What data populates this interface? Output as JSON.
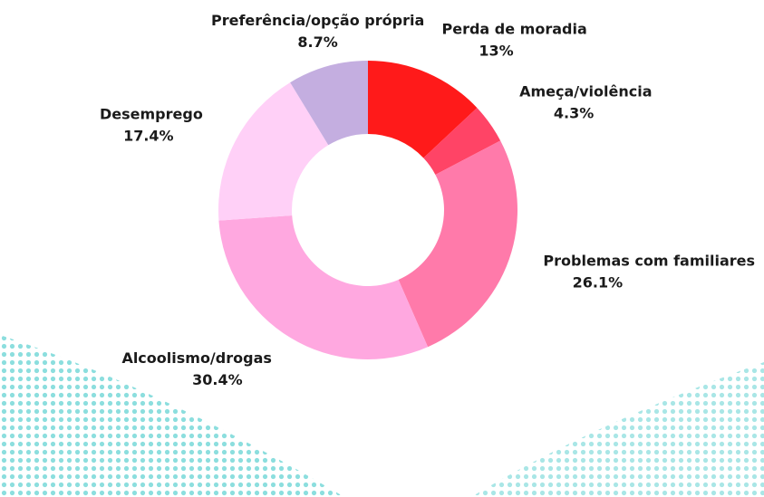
{
  "chart_data": {
    "type": "donut",
    "categories": [
      "Perda de moradia",
      "Ameça/violência",
      "Problemas com familiares",
      "Alcoolismo/drogas",
      "Desemprego",
      "Preferência/opção própria"
    ],
    "values": [
      13,
      4.3,
      26.1,
      30.4,
      17.4,
      8.7
    ],
    "value_labels": [
      "13%",
      "4.3%",
      "26.1%",
      "30.4%",
      "17.4%",
      "8.7%"
    ],
    "colors": [
      "#ff1a1a",
      "#ff4466",
      "#ff7aaa",
      "#ffa8e0",
      "#ffd0f7",
      "#c4aee0"
    ]
  }
}
